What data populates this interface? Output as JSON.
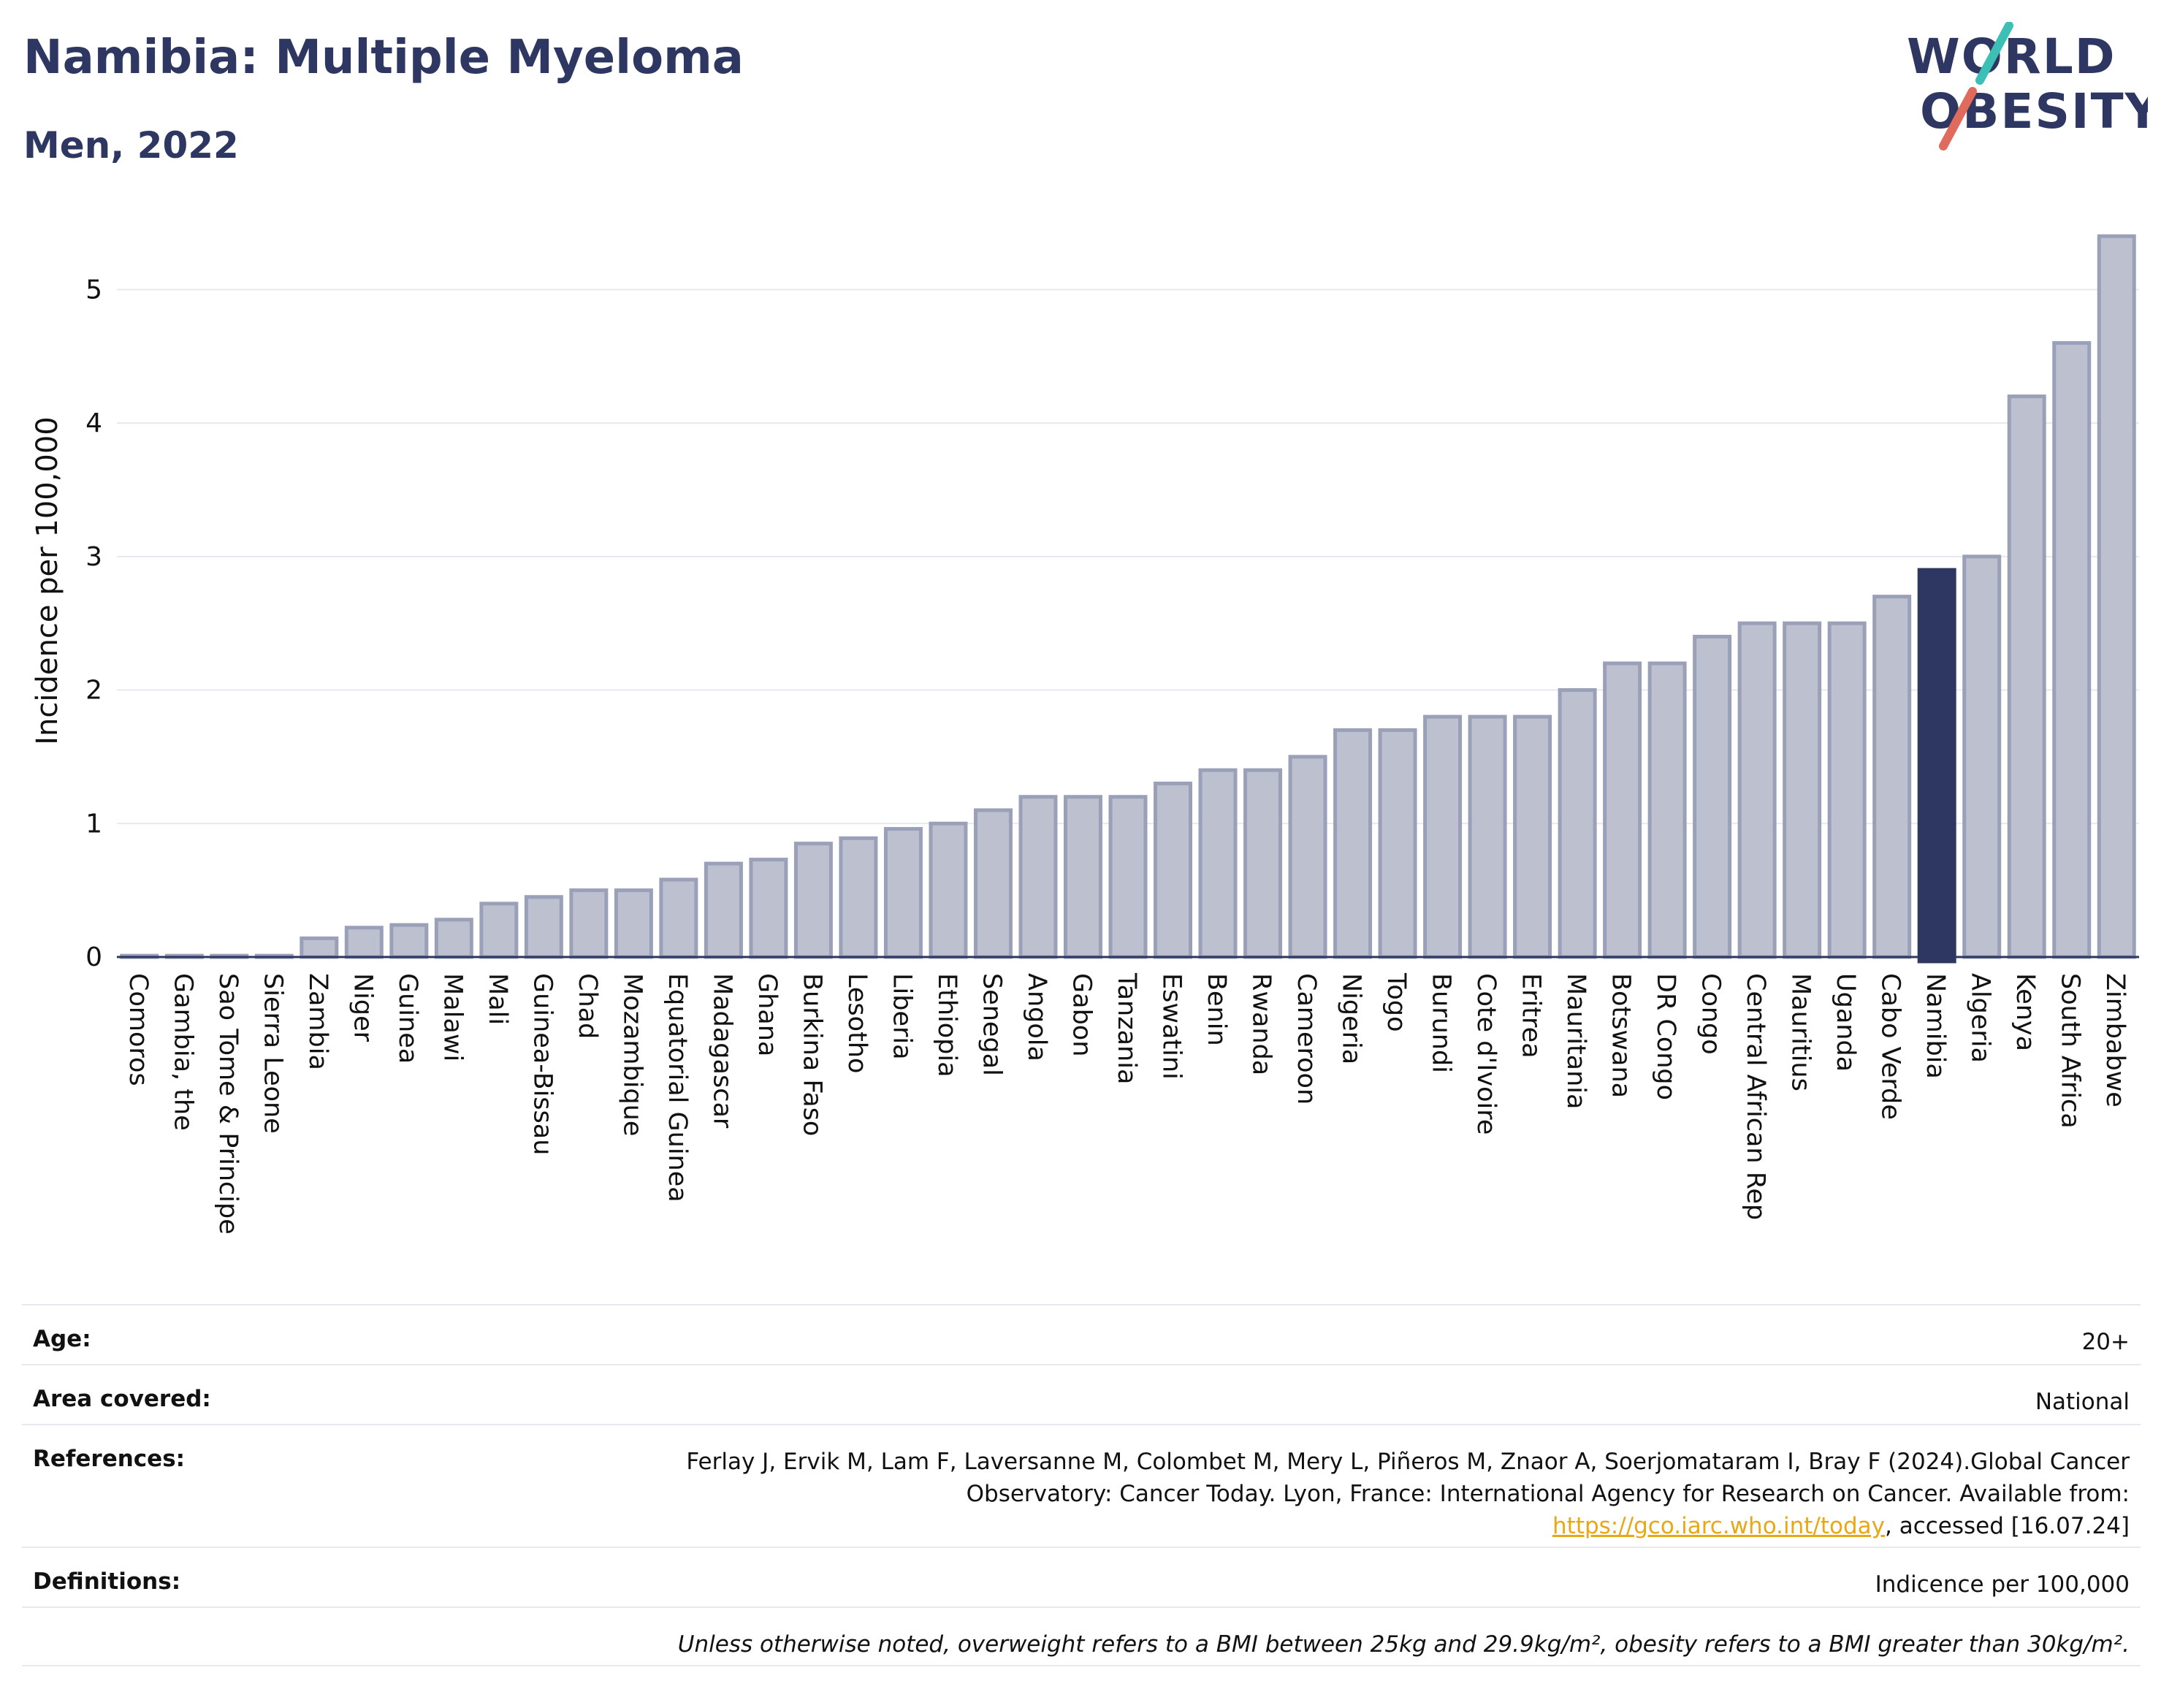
{
  "header": {
    "title": "Namibia: Multiple Myeloma",
    "subtitle": "Men, 2022"
  },
  "logo": {
    "line1": "WORLD",
    "line2": "OBESITY"
  },
  "chart_data": {
    "type": "bar",
    "title": "Namibia: Multiple Myeloma",
    "subtitle": "Men, 2022",
    "ylabel": "Incidence per 100,000",
    "xlabel": "",
    "ylim": [
      0,
      5.5
    ],
    "yticks": [
      0,
      1,
      2,
      3,
      4,
      5
    ],
    "grid": true,
    "highlight": "Namibia",
    "colors": {
      "bar": "#bcc0cf",
      "bar_border": "#9aa0b8",
      "highlight": "#2d3761",
      "grid": "#e6e9ef",
      "axis": "#2d3761"
    },
    "categories": [
      "Comoros",
      "Gambia, the",
      "Sao Tome & Principe",
      "Sierra Leone",
      "Zambia",
      "Niger",
      "Guinea",
      "Malawi",
      "Mali",
      "Guinea-Bissau",
      "Chad",
      "Mozambique",
      "Equatorial Guinea",
      "Madagascar",
      "Ghana",
      "Burkina Faso",
      "Lesotho",
      "Liberia",
      "Ethiopia",
      "Senegal",
      "Angola",
      "Gabon",
      "Tanzania",
      "Eswatini",
      "Benin",
      "Rwanda",
      "Cameroon",
      "Nigeria",
      "Togo",
      "Burundi",
      "Cote d'Ivoire",
      "Eritrea",
      "Mauritania",
      "Botswana",
      "DR Congo",
      "Congo",
      "Central African Rep",
      "Mauritius",
      "Uganda",
      "Cabo Verde",
      "Namibia",
      "Algeria",
      "Kenya",
      "South Africa",
      "Zimbabwe"
    ],
    "values": [
      0.01,
      0.01,
      0.01,
      0.01,
      0.14,
      0.22,
      0.24,
      0.28,
      0.4,
      0.45,
      0.5,
      0.5,
      0.58,
      0.7,
      0.73,
      0.85,
      0.89,
      0.96,
      1.0,
      1.1,
      1.2,
      1.2,
      1.2,
      1.3,
      1.4,
      1.4,
      1.5,
      1.7,
      1.7,
      1.8,
      1.8,
      1.8,
      2.0,
      2.2,
      2.2,
      2.4,
      2.5,
      2.5,
      2.5,
      2.7,
      2.9,
      3.0,
      4.2,
      4.6,
      5.4
    ]
  },
  "info": {
    "age_label": "Age:",
    "age_value": "20+",
    "area_label": "Area covered:",
    "area_value": "National",
    "references_label": "References:",
    "references_text": "Ferlay J, Ervik M, Lam F, Laversanne M, Colombet M, Mery L, Piñeros M, Znaor A, Soerjomataram I, Bray F (2024).Global Cancer Observatory: Cancer Today. Lyon, France: International Agency for Research on Cancer. Available from:",
    "references_link": "https://gco.iarc.who.int/today",
    "references_suffix": ", accessed [16.07.24]",
    "definitions_label": "Definitions:",
    "definitions_value": "Indicence per 100,000",
    "note": "Unless otherwise noted, overweight refers to a BMI between 25kg and 29.9kg/m², obesity refers to a BMI greater than 30kg/m²."
  }
}
